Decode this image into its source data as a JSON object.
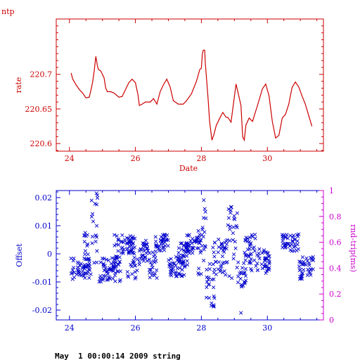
{
  "page_title": "ntp",
  "footer_text": "May  1 00:00:14 2009 string",
  "colors": {
    "top_chart": "#cc0000",
    "offset_chart": "#0000cc",
    "rnd_trip_axis": "#cc00cc",
    "background": "#ffffff"
  },
  "chart_data": [
    {
      "type": "line",
      "title": "ntp",
      "xlabel": "Date",
      "ylabel": "rate",
      "xlim": [
        23.6,
        31.7
      ],
      "ylim": [
        220.589,
        220.78
      ],
      "x_ticks": [
        24,
        26,
        28,
        30
      ],
      "x_tick_labels": [
        "24",
        "26",
        "28",
        "30"
      ],
      "y_ticks": [
        220.6,
        220.65,
        220.7
      ],
      "y_tick_labels": [
        "220.6",
        "220.65",
        "220.7"
      ],
      "grid": false,
      "series": [
        {
          "x": [
            24.05,
            24.1,
            24.2,
            24.3,
            24.4,
            24.5,
            24.6,
            24.65,
            24.7,
            24.75,
            24.8,
            24.85,
            24.88,
            24.95,
            25.05,
            25.1,
            25.15,
            25.25,
            25.35,
            25.5,
            25.6,
            25.7,
            25.8,
            25.9,
            26.0,
            26.08,
            26.12,
            26.2,
            26.3,
            26.45,
            26.55,
            26.65,
            26.75,
            26.85,
            26.95,
            27.05,
            27.15,
            27.3,
            27.45,
            27.55,
            27.7,
            27.85,
            27.95,
            28.0,
            28.03,
            28.06,
            28.1,
            28.12,
            28.2,
            28.25,
            28.32,
            28.38,
            28.45,
            28.55,
            28.65,
            28.75,
            28.8,
            28.9,
            29.05,
            29.1,
            29.2,
            29.25,
            29.3,
            29.35,
            29.45,
            29.55,
            29.7,
            29.85,
            29.95,
            30.05,
            30.15,
            30.25,
            30.35,
            30.45,
            30.55,
            30.65,
            30.75,
            30.85,
            30.95,
            31.05,
            31.15,
            31.25,
            31.35
          ],
          "y": [
            220.702,
            220.693,
            220.685,
            220.678,
            220.673,
            220.666,
            220.667,
            220.677,
            220.688,
            220.705,
            220.726,
            220.712,
            220.707,
            220.705,
            220.695,
            220.68,
            220.675,
            220.675,
            220.673,
            220.667,
            220.668,
            220.678,
            220.688,
            220.693,
            220.688,
            220.67,
            220.655,
            220.657,
            220.66,
            220.66,
            220.665,
            220.657,
            220.675,
            220.685,
            220.693,
            220.682,
            220.662,
            220.657,
            220.657,
            220.662,
            220.672,
            220.69,
            220.707,
            220.709,
            220.73,
            220.735,
            220.735,
            220.716,
            220.667,
            220.632,
            220.605,
            220.613,
            220.626,
            220.636,
            220.645,
            220.638,
            220.638,
            220.631,
            220.686,
            220.676,
            220.655,
            220.61,
            220.605,
            220.627,
            220.637,
            220.632,
            220.655,
            220.679,
            220.686,
            220.669,
            220.632,
            220.608,
            220.612,
            220.637,
            220.642,
            220.657,
            220.681,
            220.689,
            220.682,
            220.669,
            220.657,
            220.641,
            220.625
          ]
        }
      ]
    },
    {
      "type": "scatter",
      "xlabel": "",
      "ylabel": "Offset",
      "y2label": "rnd-trip(ms)",
      "xlim": [
        23.6,
        31.7
      ],
      "ylim": [
        -0.0235,
        0.0225
      ],
      "y2lim": [
        0,
        1
      ],
      "x_ticks": [
        24,
        26,
        28,
        30
      ],
      "x_tick_labels": [
        "24",
        "26",
        "28",
        "30"
      ],
      "y_ticks": [
        -0.02,
        -0.01,
        0,
        0.01,
        0.02
      ],
      "y_tick_labels": [
        "-0.02",
        "-0.01",
        "0",
        "0.01",
        "0.02"
      ],
      "y2_ticks": [
        0,
        0.2,
        0.4,
        0.6,
        0.8,
        1
      ],
      "y2_tick_labels": [
        "0",
        "0.2",
        "0.4",
        "0.6",
        "0.8",
        "1"
      ],
      "grid": false,
      "marker": "x",
      "series": [
        {
          "segments": [
            {
              "x_start": 24.05,
              "x_end": 24.65,
              "y_min": -0.009,
              "y_max": -0.001
            },
            {
              "x_start": 24.45,
              "x_end": 24.6,
              "y_min": -0.008,
              "y_max": 0.008
            },
            {
              "x_start": 24.65,
              "x_end": 24.85,
              "y_min": -0.004,
              "y_max": 0.021
            },
            {
              "x_start": 24.9,
              "x_end": 25.55,
              "y_min": -0.01,
              "y_max": -0.001
            },
            {
              "x_start": 25.3,
              "x_end": 25.5,
              "y_min": -0.008,
              "y_max": 0.008
            },
            {
              "x_start": 25.55,
              "x_end": 25.95,
              "y_min": 0.0,
              "y_max": 0.007
            },
            {
              "x_start": 25.75,
              "x_end": 26.05,
              "y_min": -0.009,
              "y_max": 0.006
            },
            {
              "x_start": 26.05,
              "x_end": 26.4,
              "y_min": -0.004,
              "y_max": 0.005
            },
            {
              "x_start": 26.4,
              "x_end": 26.65,
              "y_min": -0.009,
              "y_max": 0.002
            },
            {
              "x_start": 26.6,
              "x_end": 27.0,
              "y_min": 0.001,
              "y_max": 0.007
            },
            {
              "x_start": 27.0,
              "x_end": 27.5,
              "y_min": -0.008,
              "y_max": -0.001
            },
            {
              "x_start": 27.3,
              "x_end": 27.6,
              "y_min": -0.004,
              "y_max": 0.004
            },
            {
              "x_start": 27.55,
              "x_end": 28.0,
              "y_min": 0.0,
              "y_max": 0.007
            },
            {
              "x_start": 27.9,
              "x_end": 28.15,
              "y_min": -0.008,
              "y_max": 0.02
            },
            {
              "x_start": 28.15,
              "x_end": 28.4,
              "y_min": -0.019,
              "y_max": -0.003
            },
            {
              "x_start": 28.35,
              "x_end": 28.75,
              "y_min": -0.008,
              "y_max": 0.006
            },
            {
              "x_start": 28.75,
              "x_end": 29.1,
              "y_min": -0.009,
              "y_max": 0.017
            },
            {
              "x_start": 29.1,
              "x_end": 29.35,
              "y_min": -0.012,
              "y_max": -0.002
            },
            {
              "x_start": 29.3,
              "x_end": 29.7,
              "y_min": -0.006,
              "y_max": 0.007
            },
            {
              "x_start": 29.7,
              "x_end": 30.1,
              "y_min": -0.007,
              "y_max": 0.002
            },
            {
              "x_start": 30.45,
              "x_end": 30.95,
              "y_min": 0.001,
              "y_max": 0.007
            },
            {
              "x_start": 30.95,
              "x_end": 31.4,
              "y_min": -0.009,
              "y_max": -0.001
            }
          ],
          "outliers": [
            {
              "x": 29.2,
              "y": -0.021
            },
            {
              "x": 24.82,
              "y": 0.0215
            }
          ]
        }
      ]
    }
  ]
}
